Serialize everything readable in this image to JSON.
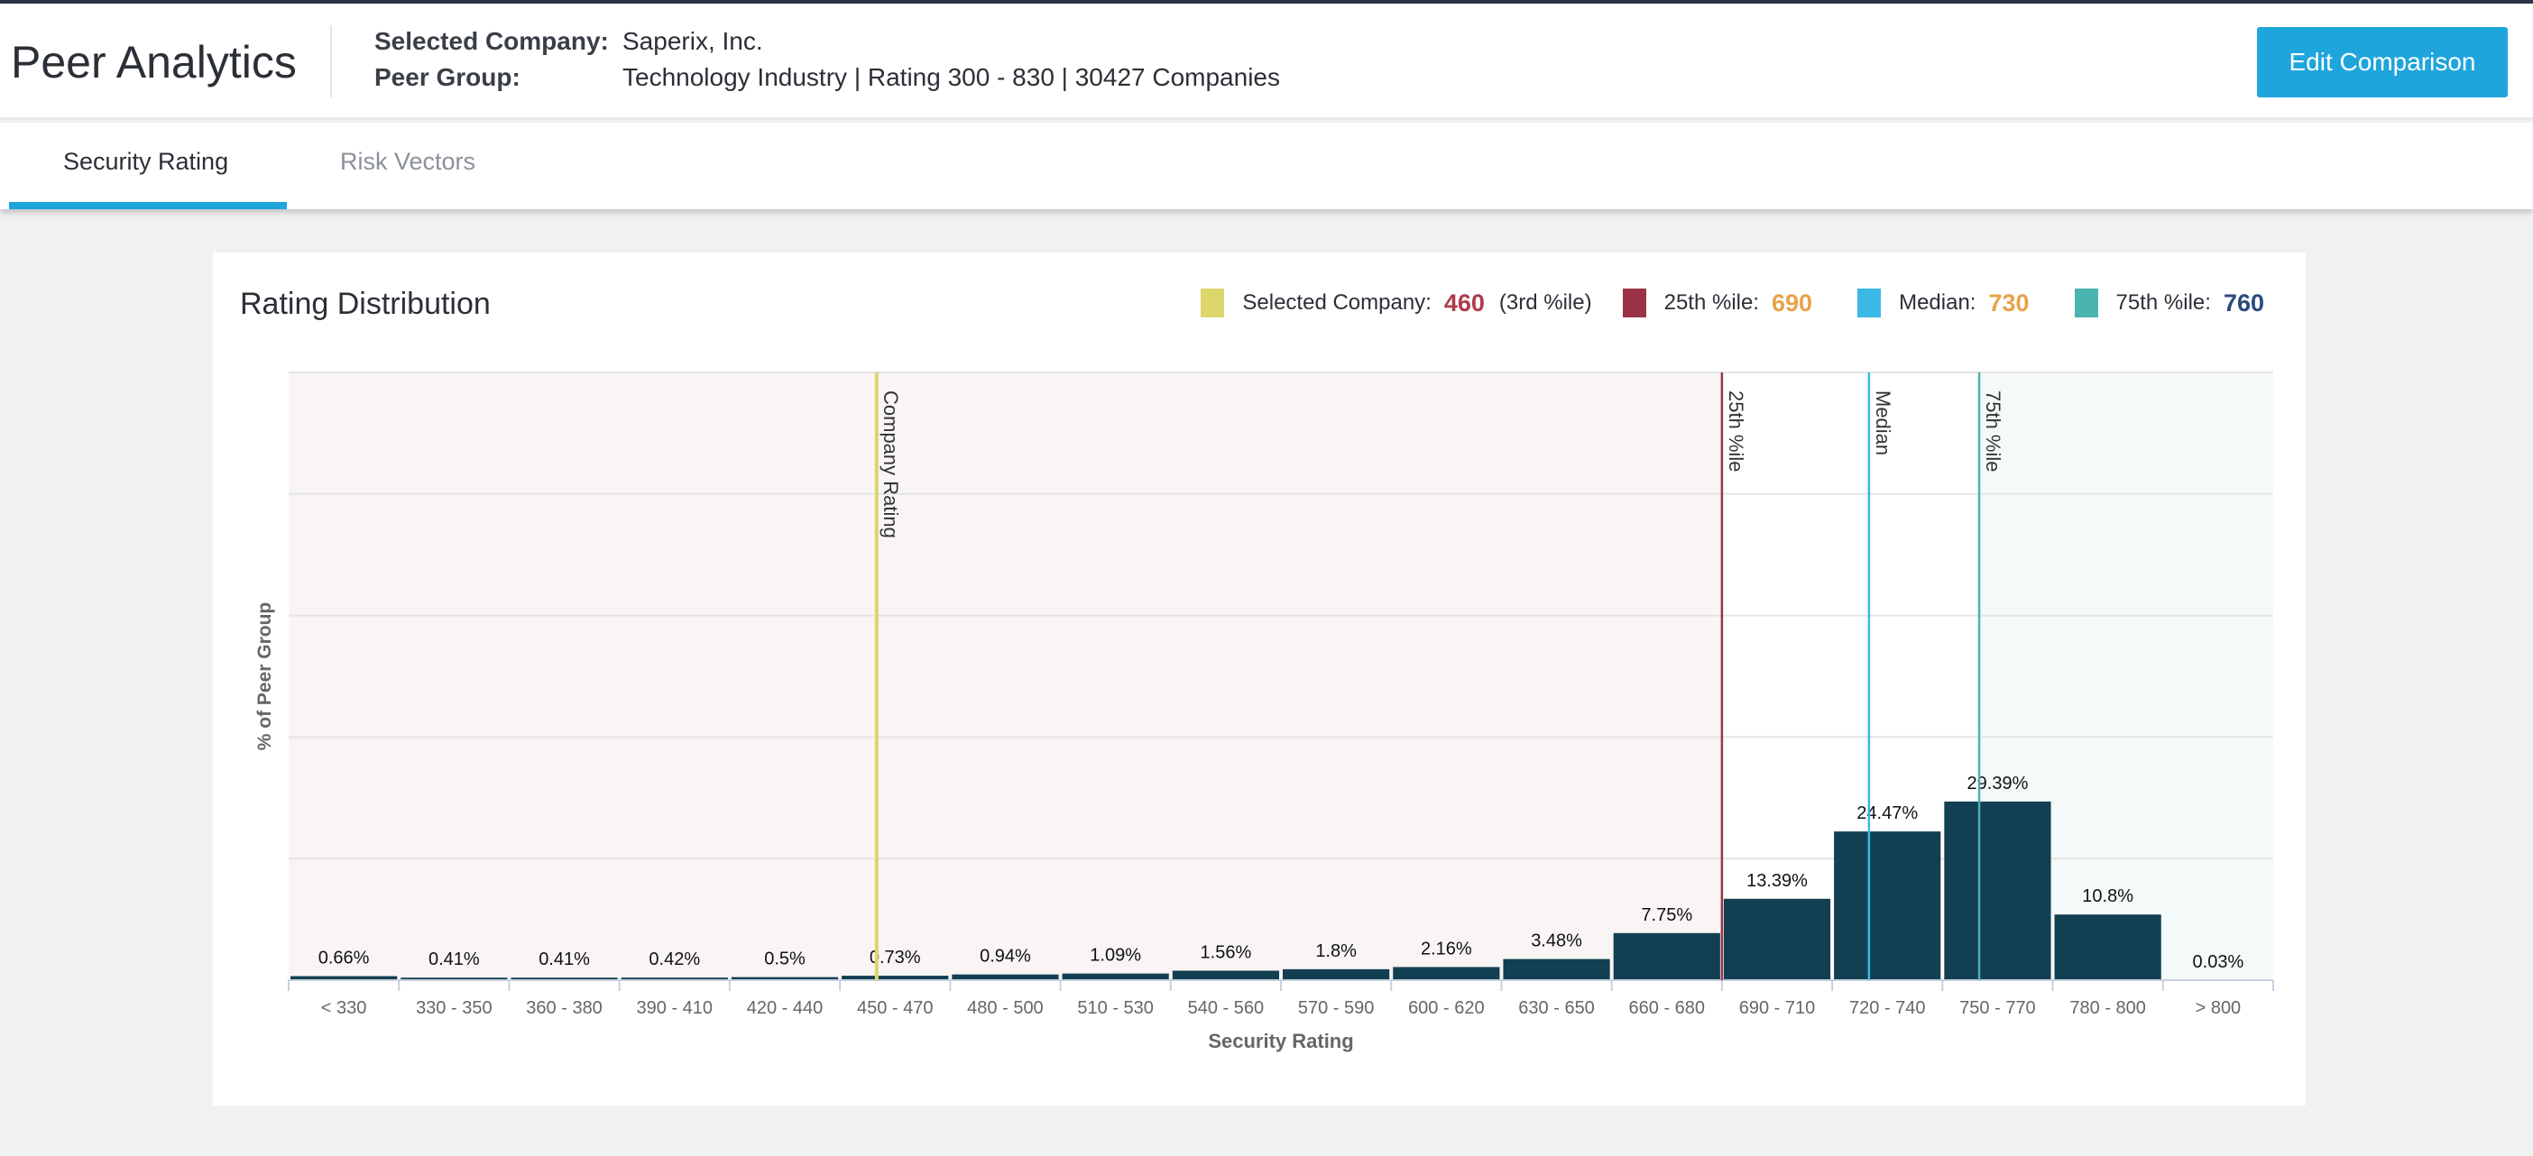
{
  "header": {
    "title": "Peer Analytics",
    "selected_company_label": "Selected Company:",
    "selected_company": "Saperix, Inc.",
    "peer_group_label": "Peer Group:",
    "peer_group": "Technology Industry | Rating 300 - 830 | 30427 Companies",
    "edit_button": "Edit Comparison"
  },
  "tabs": [
    {
      "label": "Security Rating",
      "active": true
    },
    {
      "label": "Risk Vectors",
      "active": false
    }
  ],
  "card": {
    "title": "Rating Distribution"
  },
  "legend": [
    {
      "label": "Selected Company:",
      "value": "460",
      "extra": "(3rd %ile)",
      "color": "#dcd66b",
      "value_color": "#b03a4d"
    },
    {
      "label": "25th %ile:",
      "value": "690",
      "extra": "",
      "color": "#9a3346",
      "value_color": "#e8a24a"
    },
    {
      "label": "Median:",
      "value": "730",
      "extra": "",
      "color": "#3bb8e6",
      "value_color": "#e8a24a"
    },
    {
      "label": "75th %ile:",
      "value": "760",
      "extra": "",
      "color": "#4bb3b0",
      "value_color": "#2a4a80"
    }
  ],
  "chart_data": {
    "type": "bar",
    "xlabel": "Security Rating",
    "ylabel": "% of Peer Group",
    "ylim": [
      0,
      100
    ],
    "grid": true,
    "categories": [
      "< 330",
      "330 - 350",
      "360 - 380",
      "390 - 410",
      "420 - 440",
      "450 - 470",
      "480 - 500",
      "510 - 530",
      "540 - 560",
      "570 - 590",
      "600 - 620",
      "630 - 650",
      "660 - 680",
      "690 - 710",
      "720 - 740",
      "750 - 770",
      "780 - 800",
      "> 800"
    ],
    "values": [
      0.66,
      0.41,
      0.41,
      0.42,
      0.5,
      0.73,
      0.94,
      1.09,
      1.56,
      1.8,
      2.16,
      3.48,
      7.75,
      13.39,
      24.47,
      29.39,
      10.8,
      0.03
    ],
    "labels": [
      "0.66%",
      "0.41%",
      "0.41%",
      "0.42%",
      "0.5%",
      "0.73%",
      "0.94%",
      "1.09%",
      "1.56%",
      "1.8%",
      "2.16%",
      "3.48%",
      "7.75%",
      "13.39%",
      "24.47%",
      "29.39%",
      "10.8%",
      "0.03%"
    ],
    "bar_color": "#133f52",
    "markers": [
      {
        "label": "Company Rating",
        "rating": 460,
        "color": "#dcd66b"
      },
      {
        "label": "25th %ile",
        "rating": 690,
        "color": "#9a3346"
      },
      {
        "label": "Median",
        "rating": 730,
        "color": "#3bb8e6"
      },
      {
        "label": "75th %ile",
        "rating": 760,
        "color": "#4bb3b0"
      }
    ],
    "regions": {
      "below_25th": "#f8f5f4",
      "above_75th": "#f4f9f9"
    }
  }
}
